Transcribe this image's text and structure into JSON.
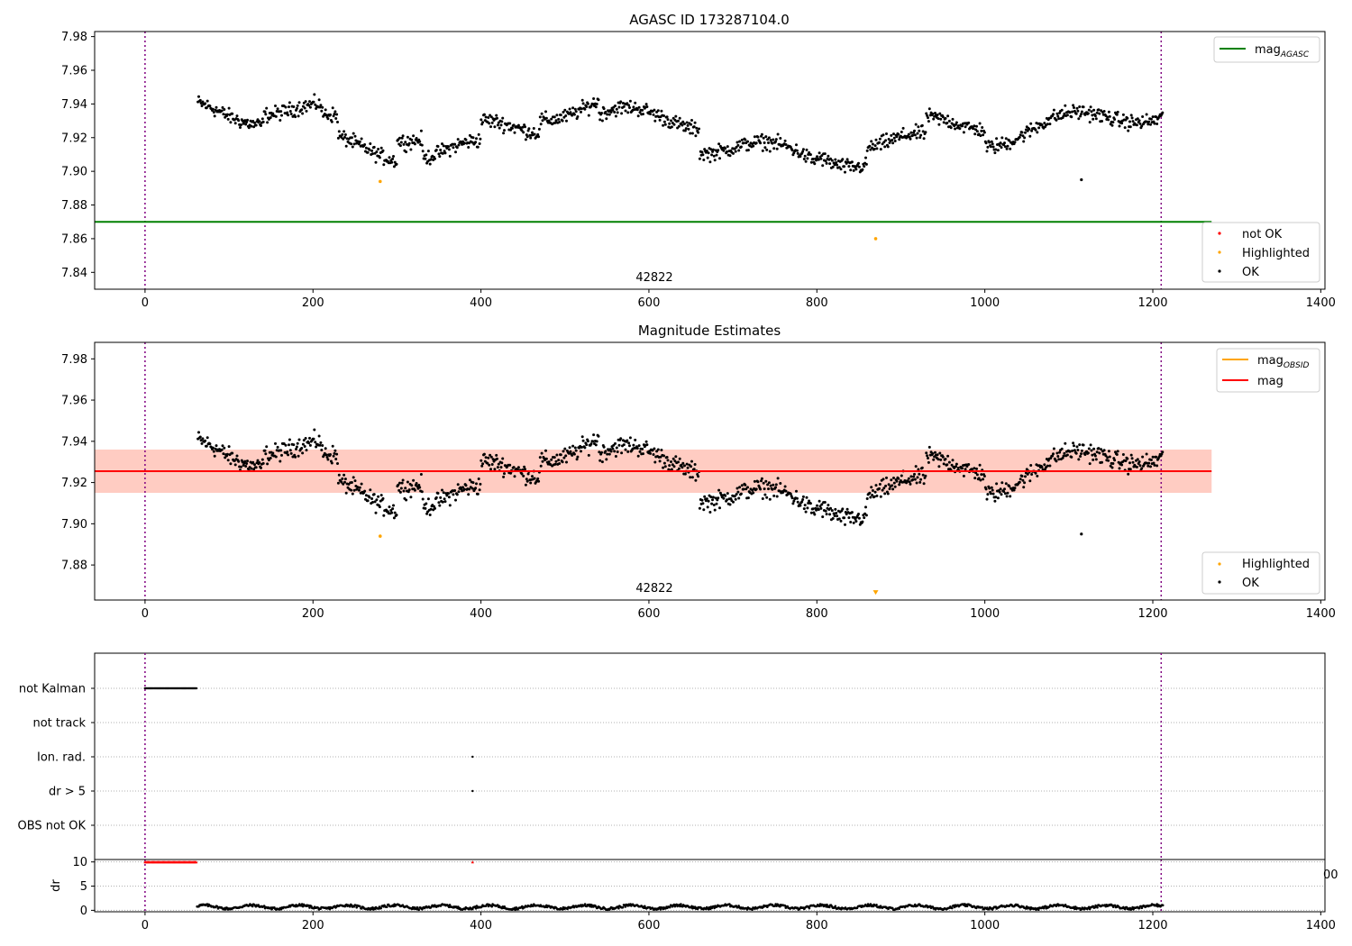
{
  "chart_data": [
    {
      "type": "scatter",
      "title": "AGASC ID 173287104.0",
      "xlim": [
        -60,
        1405
      ],
      "ylim": [
        7.83,
        7.983
      ],
      "xticks": [
        "0",
        "200",
        "400",
        "600",
        "800",
        "1000",
        "1200",
        "1400"
      ],
      "yticks": [
        "7.84",
        "7.86",
        "7.88",
        "7.90",
        "7.92",
        "7.94",
        "7.96",
        "7.98"
      ],
      "obsid_label": "42822",
      "obs_bounds": [
        0,
        1210
      ],
      "mag_agasc": 7.87,
      "mag_agasc_xrange": [
        -60,
        1270
      ],
      "highlighted_points": [
        [
          280,
          7.894
        ],
        [
          870,
          7.86
        ]
      ],
      "outlier_points": [
        [
          1115,
          7.895
        ]
      ],
      "legend_lines": [
        {
          "name": "mag",
          "sub": "AGASC",
          "color": "#008000"
        }
      ],
      "legend_points": [
        {
          "name": "not OK",
          "color": "#ff0000"
        },
        {
          "name": "Highlighted",
          "color": "#ffa500"
        },
        {
          "name": "OK",
          "color": "#000000"
        }
      ]
    },
    {
      "type": "scatter",
      "title": "Magnitude Estimates",
      "xlim": [
        -60,
        1405
      ],
      "ylim": [
        7.863,
        7.988
      ],
      "xticks": [
        "0",
        "200",
        "400",
        "600",
        "800",
        "1000",
        "1200",
        "1400"
      ],
      "yticks": [
        "7.88",
        "7.90",
        "7.92",
        "7.94",
        "7.96",
        "7.98"
      ],
      "obsid_label": "42822",
      "obs_bounds": [
        0,
        1210
      ],
      "mag": 7.9255,
      "mag_band": [
        7.915,
        7.936
      ],
      "band_xrange": [
        -60,
        1270
      ],
      "highlighted_points": [
        [
          280,
          7.894
        ]
      ],
      "outlier_points": [
        [
          1115,
          7.895
        ]
      ],
      "marker_triangle": [
        870,
        7.866
      ],
      "legend_lines": [
        {
          "name": "mag",
          "sub": "OBSID",
          "color": "#ffa500"
        },
        {
          "name": "mag",
          "sub": "",
          "color": "#ff0000"
        }
      ],
      "legend_points": [
        {
          "name": "Highlighted",
          "color": "#ffa500"
        },
        {
          "name": "OK",
          "color": "#000000"
        }
      ]
    },
    {
      "type": "scatter",
      "categories": [
        "not Kalman",
        "not track",
        "Ion. rad.",
        "dr > 5",
        "OBS not OK"
      ],
      "flag_ranges": [
        {
          "category": "not Kalman",
          "x": [
            0,
            62
          ]
        },
        {
          "category": "Ion. rad.",
          "x": [
            390,
            390
          ]
        },
        {
          "category": "dr > 5",
          "x": [
            390,
            390
          ]
        }
      ],
      "obs_bounds": [
        0,
        1210
      ]
    },
    {
      "type": "scatter",
      "ylabel": "dr",
      "xlim": [
        -60,
        1405
      ],
      "ylim": [
        -0.3,
        10.5
      ],
      "yticks": [
        "0",
        "5",
        "10"
      ],
      "xticks": [
        "0",
        "200",
        "400",
        "600",
        "800",
        "1000",
        "1200",
        "1400"
      ],
      "overflow_value": 10,
      "overflow_ranges": [
        [
          0,
          62
        ],
        [
          390,
          390
        ]
      ],
      "dr_xrange": [
        62,
        1212
      ],
      "obs_bounds": [
        0,
        1210
      ],
      "clipped_tick_text": "00"
    }
  ]
}
